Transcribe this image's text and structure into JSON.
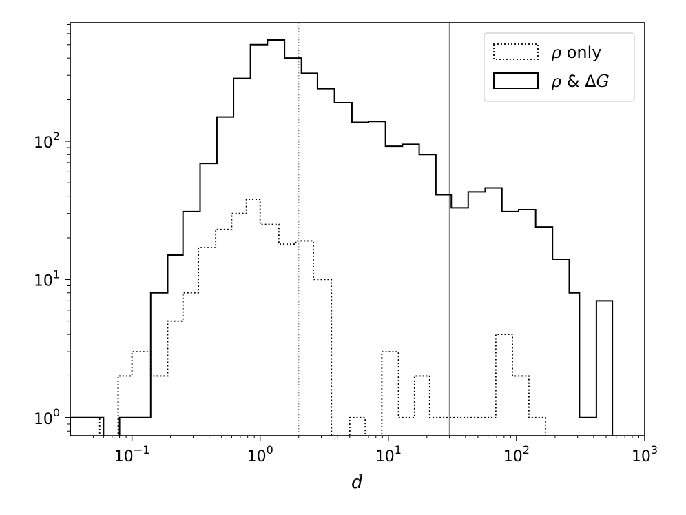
{
  "chart_data": {
    "type": "histogram",
    "xlabel": "d",
    "ylabel": "",
    "xscale": "log",
    "yscale": "log",
    "xlim": [
      0.033,
      1000
    ],
    "ylim": [
      0.74,
      720
    ],
    "x_ticks": [
      {
        "value": 0.1,
        "base": "10",
        "exp": "−1"
      },
      {
        "value": 1,
        "base": "10",
        "exp": "0"
      },
      {
        "value": 10,
        "base": "10",
        "exp": "1"
      },
      {
        "value": 100,
        "base": "10",
        "exp": "2"
      },
      {
        "value": 1000,
        "base": "10",
        "exp": "3"
      }
    ],
    "y_ticks": [
      {
        "value": 1,
        "base": "10",
        "exp": "0"
      },
      {
        "value": 10,
        "base": "10",
        "exp": "1"
      },
      {
        "value": 100,
        "base": "10",
        "exp": "2"
      }
    ],
    "vlines": [
      {
        "x": 2,
        "style": "dotted",
        "color": "#888888"
      },
      {
        "x": 30,
        "style": "solid",
        "color": "#888888"
      }
    ],
    "legend": {
      "position": "top-right"
    },
    "series": [
      {
        "name": "ρ only",
        "name_symbol": "ρ",
        "name_text": " only",
        "style": "dotted",
        "steps": [
          [
            0.033,
            1
          ],
          [
            0.043,
            1
          ],
          [
            0.056,
            0
          ],
          [
            0.078,
            2
          ],
          [
            0.1,
            3
          ],
          [
            0.14,
            2
          ],
          [
            0.19,
            5
          ],
          [
            0.25,
            8
          ],
          [
            0.33,
            17
          ],
          [
            0.45,
            23
          ],
          [
            0.6,
            30
          ],
          [
            0.78,
            38
          ],
          [
            1.0,
            25
          ],
          [
            1.4,
            18
          ],
          [
            1.9,
            19
          ],
          [
            2.6,
            10
          ],
          [
            3.6,
            0
          ],
          [
            5.0,
            1
          ],
          [
            6.6,
            0
          ],
          [
            8.9,
            3
          ],
          [
            12.0,
            1
          ],
          [
            16.0,
            2
          ],
          [
            21.0,
            1
          ],
          [
            28.0,
            1
          ],
          [
            38.0,
            1
          ],
          [
            51.0,
            1
          ],
          [
            69.0,
            4
          ],
          [
            93.0,
            2
          ],
          [
            125.0,
            1
          ],
          [
            168.0,
            0
          ]
        ]
      },
      {
        "name": "ρ & ΔG",
        "name_symbol": "ρ",
        "name_text": " & Δ",
        "name_italic": "G",
        "style": "solid",
        "steps": [
          [
            0.033,
            1
          ],
          [
            0.06,
            0
          ],
          [
            0.08,
            1
          ],
          [
            0.14,
            8
          ],
          [
            0.19,
            15
          ],
          [
            0.25,
            31
          ],
          [
            0.34,
            69
          ],
          [
            0.46,
            150
          ],
          [
            0.62,
            285
          ],
          [
            0.84,
            500
          ],
          [
            1.14,
            540
          ],
          [
            1.55,
            400
          ],
          [
            2.1,
            310
          ],
          [
            2.8,
            240
          ],
          [
            3.8,
            190
          ],
          [
            5.2,
            137
          ],
          [
            7.0,
            139
          ],
          [
            9.5,
            92
          ],
          [
            12.9,
            95
          ],
          [
            17.4,
            80
          ],
          [
            23.5,
            41
          ],
          [
            31.0,
            33
          ],
          [
            42.0,
            43
          ],
          [
            57.0,
            46
          ],
          [
            77.0,
            31
          ],
          [
            104.0,
            32
          ],
          [
            141.0,
            24
          ],
          [
            191.0,
            14
          ],
          [
            258.0,
            8
          ],
          [
            310.0,
            1
          ],
          [
            420.0,
            7
          ],
          [
            560.0,
            0
          ]
        ]
      }
    ]
  }
}
